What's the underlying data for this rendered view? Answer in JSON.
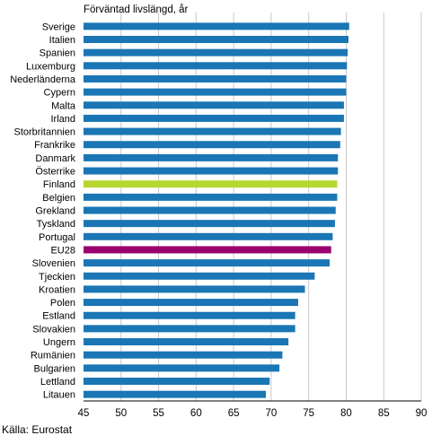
{
  "chart_data": {
    "type": "bar",
    "orientation": "horizontal",
    "title": "",
    "ylabel": "Förväntad livslängd, år",
    "source": "Källa: Eurostat",
    "xlim": [
      45,
      90
    ],
    "x_ticks": [
      "45",
      "50",
      "55",
      "60",
      "65",
      "70",
      "75",
      "80",
      "85",
      "90"
    ],
    "grid": "vertical",
    "categories": [
      "Sverige",
      "Italien",
      "Spanien",
      "Luxemburg",
      "Nederländerna",
      "Cypern",
      "Malta",
      "Irland",
      "Storbritannien",
      "Frankrike",
      "Danmark",
      "Österrike",
      "Finland",
      "Belgien",
      "Grekland",
      "Tyskland",
      "Portugal",
      "EU28",
      "Slovenien",
      "Tjeckien",
      "Kroatien",
      "Polen",
      "Estland",
      "Slovakien",
      "Ungern",
      "Rumänien",
      "Bulgarien",
      "Lettland",
      "Litauen"
    ],
    "values": [
      80.4,
      80.3,
      80.2,
      80.1,
      80.0,
      80.0,
      79.7,
      79.7,
      79.3,
      79.2,
      78.9,
      78.9,
      78.8,
      78.8,
      78.6,
      78.5,
      78.2,
      78.0,
      77.8,
      75.8,
      74.5,
      73.6,
      73.2,
      73.2,
      72.3,
      71.5,
      71.1,
      69.8,
      69.3
    ],
    "colors": {
      "default": "#1a76b4",
      "highlight_finland": "#b7d62f",
      "highlight_eu28": "#9b006f",
      "grid": "#c8c8c8",
      "axis": "#000000"
    },
    "highlight": {
      "Finland": "highlight_finland",
      "EU28": "highlight_eu28"
    }
  }
}
